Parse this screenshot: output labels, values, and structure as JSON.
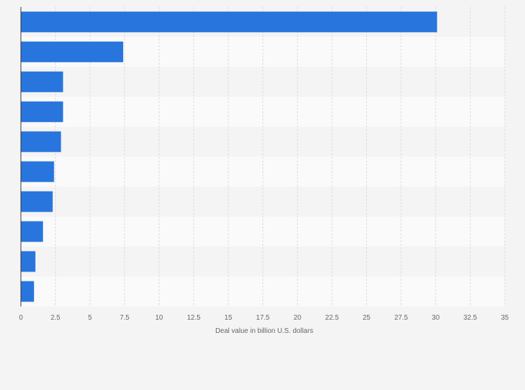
{
  "chart_data": {
    "type": "bar",
    "orientation": "horizontal",
    "title": "",
    "xlabel": "Deal value in billion U.S. dollars",
    "ylabel": "",
    "xlim": [
      0,
      35
    ],
    "xticks": [
      "0",
      "2.5",
      "5",
      "7.5",
      "10",
      "12.5",
      "15",
      "17.5",
      "20",
      "22.5",
      "25",
      "27.5",
      "30",
      "32.5",
      "35"
    ],
    "categories": [
      "",
      "",
      "",
      "",
      "",
      "",
      "",
      "",
      "",
      ""
    ],
    "values": [
      30.1,
      7.4,
      3.05,
      3.05,
      2.9,
      2.4,
      2.3,
      1.6,
      1.05,
      0.95
    ],
    "grid": true,
    "legend": "none",
    "colors": {
      "bar": "#2876dd",
      "band_even": "#f4f4f4",
      "band_odd": "#fafafa",
      "grid": "#dcdcdc",
      "axis": "#333333",
      "text": "#666666"
    }
  }
}
